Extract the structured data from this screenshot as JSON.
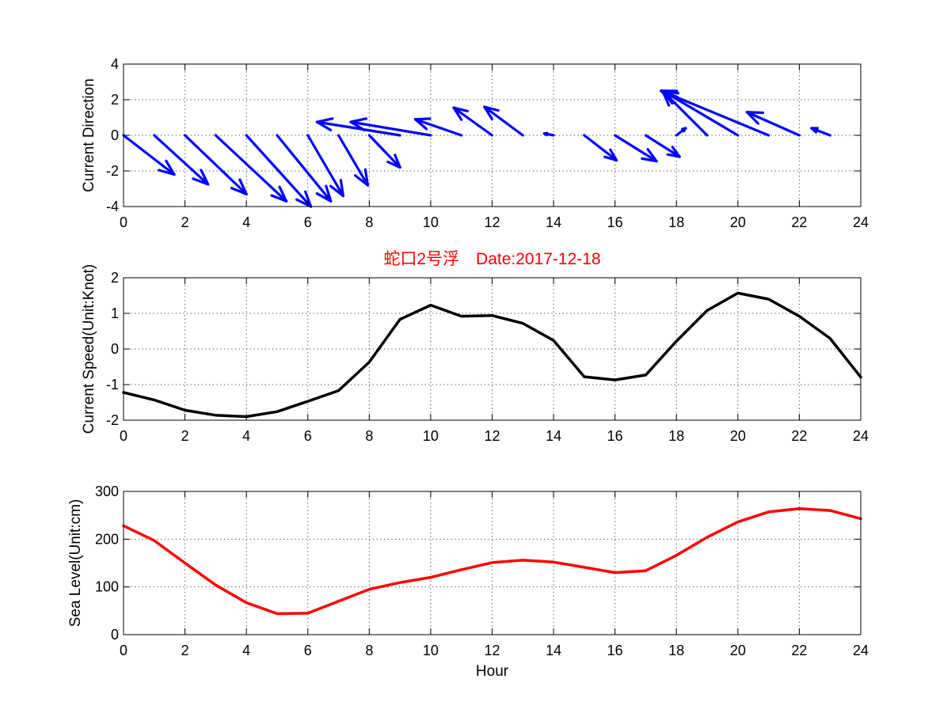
{
  "chart_data": [
    {
      "type": "quiver",
      "id": "direction",
      "title": "",
      "xlabel": "",
      "ylabel": "Current Direction",
      "xlim": [
        0,
        24
      ],
      "ylim": [
        -4,
        4
      ],
      "xticks": [
        0,
        2,
        4,
        6,
        8,
        10,
        12,
        14,
        16,
        18,
        20,
        22,
        24
      ],
      "yticks": [
        -4,
        -2,
        0,
        2,
        4
      ],
      "grid": true,
      "color": "#0000ff",
      "arrows": [
        {
          "x": 0,
          "u": 1.65,
          "v": -2.2
        },
        {
          "x": 1,
          "u": 1.75,
          "v": -2.75
        },
        {
          "x": 2,
          "u": 2.0,
          "v": -3.3
        },
        {
          "x": 3,
          "u": 2.3,
          "v": -3.7
        },
        {
          "x": 4,
          "u": 2.1,
          "v": -4.0
        },
        {
          "x": 5,
          "u": 1.75,
          "v": -3.7
        },
        {
          "x": 6,
          "u": 1.15,
          "v": -3.4
        },
        {
          "x": 7,
          "u": 0.95,
          "v": -2.8
        },
        {
          "x": 8,
          "u": 1.0,
          "v": -1.8
        },
        {
          "x": 9,
          "u": -2.7,
          "v": 0.75
        },
        {
          "x": 10,
          "u": -2.6,
          "v": 0.75
        },
        {
          "x": 11,
          "u": -1.5,
          "v": 0.9
        },
        {
          "x": 12,
          "u": -1.25,
          "v": 1.55
        },
        {
          "x": 13,
          "u": -1.25,
          "v": 1.6
        },
        {
          "x": 14,
          "u": -0.3,
          "v": 0.1
        },
        {
          "x": 15,
          "u": 1.05,
          "v": -1.4
        },
        {
          "x": 16,
          "u": 1.35,
          "v": -1.45
        },
        {
          "x": 17,
          "u": 1.1,
          "v": -1.2
        },
        {
          "x": 18,
          "u": 0.3,
          "v": 0.4
        },
        {
          "x": 19,
          "u": -1.45,
          "v": 2.5
        },
        {
          "x": 20,
          "u": -2.45,
          "v": 2.5
        },
        {
          "x": 21,
          "u": -3.5,
          "v": 2.5
        },
        {
          "x": 22,
          "u": -1.7,
          "v": 1.3
        },
        {
          "x": 23,
          "u": -0.6,
          "v": 0.4
        }
      ]
    },
    {
      "type": "line",
      "id": "speed",
      "title": "蛇口2号浮　Date:2017-12-18",
      "xlabel": "",
      "ylabel": "Current Speed(Unit:Knot)",
      "xlim": [
        0,
        24
      ],
      "ylim": [
        -2,
        2
      ],
      "xticks": [
        0,
        2,
        4,
        6,
        8,
        10,
        12,
        14,
        16,
        18,
        20,
        22,
        24
      ],
      "yticks": [
        -2,
        -1,
        0,
        1,
        2
      ],
      "grid": true,
      "color": "#000000",
      "title_color": "#ff0000",
      "x": [
        0,
        1,
        2,
        3,
        4,
        5,
        6,
        7,
        8,
        9,
        10,
        11,
        12,
        13,
        14,
        15,
        16,
        17,
        18,
        19,
        20,
        21,
        22,
        23,
        24
      ],
      "values": [
        -1.22,
        -1.43,
        -1.72,
        -1.86,
        -1.9,
        -1.76,
        -1.47,
        -1.17,
        -0.37,
        0.83,
        1.23,
        0.92,
        0.94,
        0.72,
        0.24,
        -0.78,
        -0.87,
        -0.73,
        0.22,
        1.08,
        1.57,
        1.4,
        0.92,
        0.3,
        -0.79
      ]
    },
    {
      "type": "line",
      "id": "sealevel",
      "title": "",
      "xlabel": "Hour",
      "ylabel": "Sea Level(Unit:cm)",
      "xlim": [
        0,
        24
      ],
      "ylim": [
        0,
        300
      ],
      "xticks": [
        0,
        2,
        4,
        6,
        8,
        10,
        12,
        14,
        16,
        18,
        20,
        22,
        24
      ],
      "yticks": [
        0,
        100,
        200,
        300
      ],
      "grid": true,
      "color": "#ff0000",
      "x": [
        0,
        1,
        2,
        3,
        4,
        5,
        6,
        7,
        8,
        9,
        10,
        11,
        12,
        13,
        14,
        15,
        16,
        17,
        18,
        19,
        20,
        21,
        22,
        23,
        24
      ],
      "values": [
        228,
        197,
        150,
        104,
        67,
        44,
        45,
        70,
        95,
        109,
        120,
        136,
        151,
        156,
        152,
        141,
        130,
        134,
        166,
        204,
        236,
        257,
        264,
        260,
        243
      ]
    }
  ]
}
